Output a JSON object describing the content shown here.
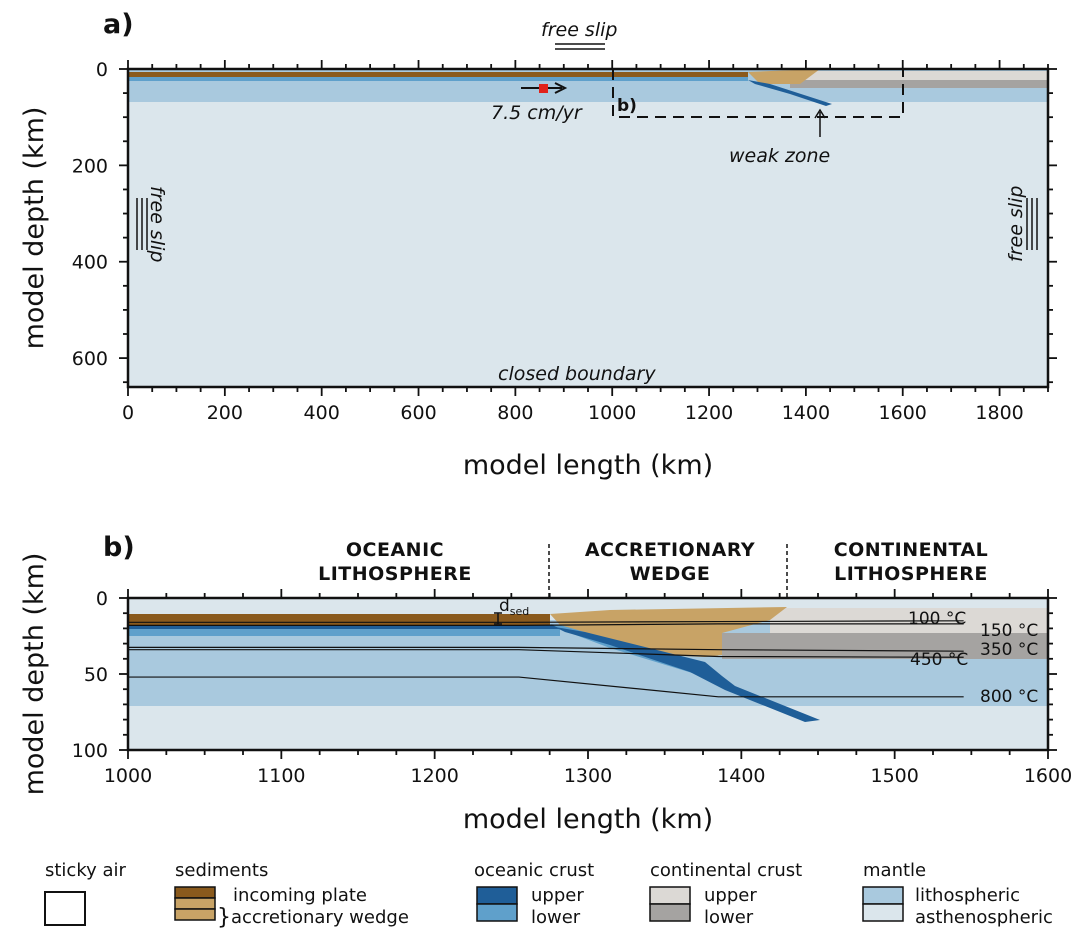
{
  "colors": {
    "sticky_air": "#ffffff",
    "sed_incoming": "#8a5a1d",
    "sed_wedge": "#c8a366",
    "ocean_upper": "#1f5e98",
    "ocean_lower": "#5fa0cb",
    "cont_upper": "#dcd9d5",
    "cont_lower": "#a5a3a1",
    "mantle_litho": "#a9c9de",
    "mantle_astheno": "#dbe6ec",
    "velocity_marker": "#e0221b"
  },
  "panel_a": {
    "letter": "a)",
    "xlabel": "model length (km)",
    "ylabel": "model depth (km)",
    "x_range_km": [
      0,
      1900
    ],
    "y_range_km": [
      0,
      660
    ],
    "x_ticks": [
      0,
      200,
      400,
      600,
      800,
      1000,
      1200,
      1400,
      1600,
      1800
    ],
    "y_ticks": [
      0,
      200,
      400,
      600
    ],
    "top_label": "free slip",
    "left_label": "free slip",
    "right_label": "free slip",
    "bottom_label": "closed boundary",
    "velocity_label": "7.5 cm/yr",
    "weak_zone_label": "weak zone",
    "inset_label": "b)"
  },
  "panel_b": {
    "letter": "b)",
    "xlabel": "model length (km)",
    "ylabel": "model depth (km)",
    "x_range_km": [
      1000,
      1600
    ],
    "y_range_km": [
      0,
      100
    ],
    "x_ticks": [
      1000,
      1100,
      1200,
      1300,
      1400,
      1500,
      1600
    ],
    "y_ticks": [
      0,
      50,
      100
    ],
    "domains": [
      {
        "line1": "OCEANIC",
        "line2": "LITHOSPHERE"
      },
      {
        "line1": "ACCRETIONARY",
        "line2": "WEDGE"
      },
      {
        "line1": "CONTINENTAL",
        "line2": "LITHOSPHERE"
      }
    ],
    "domain_boundaries_km": [
      1275,
      1430
    ],
    "dsed_label": "d",
    "dsed_sub": "sed",
    "isotherms": [
      {
        "label": "100 °C",
        "depths_km": [
          16,
          16,
          15.5,
          15
        ]
      },
      {
        "label": "150 °C",
        "depths_km": [
          18,
          18,
          17,
          17
        ]
      },
      {
        "label": "350 °C",
        "depths_km": [
          32.5,
          32.5,
          34,
          35
        ]
      },
      {
        "label": "450 °C",
        "depths_km": [
          34,
          34,
          38.5,
          39
        ]
      },
      {
        "label": "800 °C",
        "depths_km": [
          52,
          52,
          65,
          65
        ]
      }
    ]
  },
  "legend": {
    "groups": [
      {
        "title": "sticky air",
        "items": []
      },
      {
        "title": "sediments",
        "items": [
          "incoming plate",
          "accretionary wedge"
        ]
      },
      {
        "title": "oceanic crust",
        "items": [
          "upper",
          "lower"
        ]
      },
      {
        "title": "continental crust",
        "items": [
          "upper",
          "lower"
        ]
      },
      {
        "title": "mantle",
        "items": [
          "lithospheric",
          "asthenospheric"
        ]
      }
    ]
  }
}
